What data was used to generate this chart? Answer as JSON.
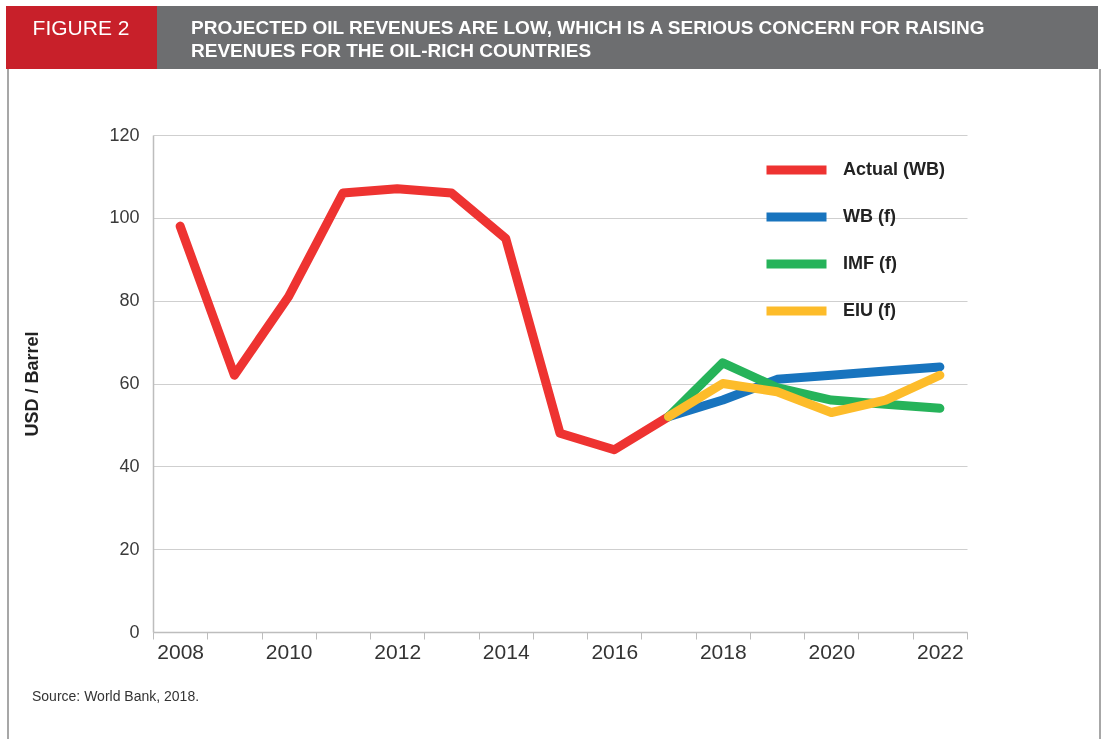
{
  "chart_data": {
    "type": "line",
    "title": "PROJECTED OIL REVENUES ARE LOW, WHICH IS A SERIOUS CONCERN FOR RAISING REVENUES FOR THE OIL-RICH COUNTRIES",
    "ylabel": "USD / Barrel",
    "annotations": [
      "FIGURE 2",
      "Source: World Bank, 2018."
    ],
    "categories": [
      "2008",
      null,
      "2010",
      null,
      "2012",
      null,
      "2014",
      null,
      "2016",
      null,
      "2018",
      null,
      "2020",
      null,
      "2022"
    ],
    "series": [
      {
        "name": "Actual (WB)",
        "color": "#ee3331",
        "values": [
          98,
          62,
          81,
          106,
          107,
          106,
          95,
          48,
          44,
          52,
          null,
          null,
          null,
          null,
          null
        ]
      },
      {
        "name": "WB (f)",
        "color": "#1874be",
        "values": [
          null,
          null,
          null,
          null,
          null,
          null,
          null,
          null,
          null,
          52,
          56,
          61,
          62,
          63,
          64
        ]
      },
      {
        "name": "IMF (f)",
        "color": "#26b35a",
        "values": [
          null,
          null,
          null,
          null,
          null,
          null,
          null,
          null,
          null,
          52,
          65,
          59,
          56,
          55,
          54
        ]
      },
      {
        "name": "EIU (f)",
        "color": "#fdbc2a",
        "values": [
          null,
          null,
          null,
          null,
          null,
          null,
          null,
          null,
          null,
          52,
          60,
          58,
          53,
          56,
          62
        ]
      }
    ],
    "ylim": [
      0,
      120
    ],
    "yticks": [
      0,
      20,
      40,
      60,
      80,
      100,
      120
    ],
    "grid": "y",
    "legend": "top right",
    "line_style": "solid"
  }
}
